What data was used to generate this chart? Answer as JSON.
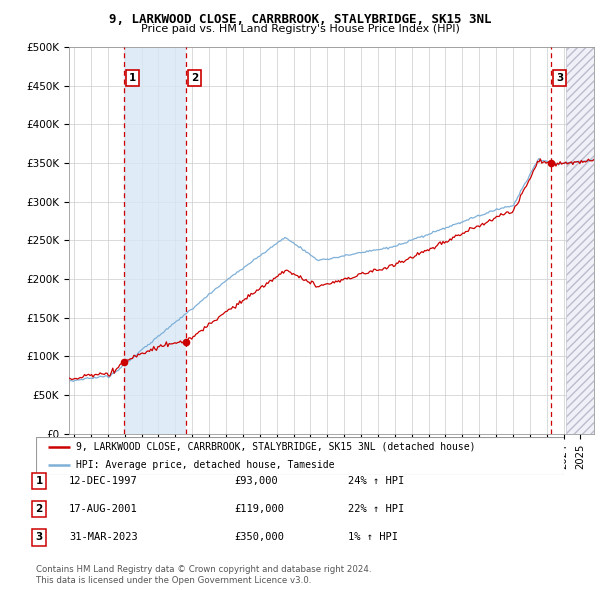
{
  "title": "9, LARKWOOD CLOSE, CARRBROOK, STALYBRIDGE, SK15 3NL",
  "subtitle": "Price paid vs. HM Land Registry's House Price Index (HPI)",
  "xlim_start": 1994.7,
  "xlim_end": 2025.8,
  "ylim": [
    0,
    500000
  ],
  "yticks": [
    0,
    50000,
    100000,
    150000,
    200000,
    250000,
    300000,
    350000,
    400000,
    450000,
    500000
  ],
  "ytick_labels": [
    "£0",
    "£50K",
    "£100K",
    "£150K",
    "£200K",
    "£250K",
    "£300K",
    "£350K",
    "£400K",
    "£450K",
    "£500K"
  ],
  "sales": [
    {
      "date_num": 1997.95,
      "price": 93000,
      "label": "1"
    },
    {
      "date_num": 2001.63,
      "price": 119000,
      "label": "2"
    },
    {
      "date_num": 2023.25,
      "price": 350000,
      "label": "3"
    }
  ],
  "vlines": [
    1997.95,
    2001.63,
    2023.25
  ],
  "blue_shade_start": 1997.95,
  "blue_shade_end": 2001.63,
  "hatch_region_start": 2024.17,
  "hatch_region_end": 2025.8,
  "property_line_color": "#cc0000",
  "hpi_line_color": "#7fb0d8",
  "blue_shade_color": "#d8e8f5",
  "legend_property": "9, LARKWOOD CLOSE, CARRBROOK, STALYBRIDGE, SK15 3NL (detached house)",
  "legend_hpi": "HPI: Average price, detached house, Tameside",
  "table_entries": [
    {
      "num": "1",
      "date": "12-DEC-1997",
      "price": "£93,000",
      "change": "24% ↑ HPI"
    },
    {
      "num": "2",
      "date": "17-AUG-2001",
      "price": "£119,000",
      "change": "22% ↑ HPI"
    },
    {
      "num": "3",
      "date": "31-MAR-2023",
      "price": "£350,000",
      "change": "1% ↑ HPI"
    }
  ],
  "footnote": "Contains HM Land Registry data © Crown copyright and database right 2024.\nThis data is licensed under the Open Government Licence v3.0.",
  "background_color": "#ffffff",
  "grid_color": "#cccccc"
}
